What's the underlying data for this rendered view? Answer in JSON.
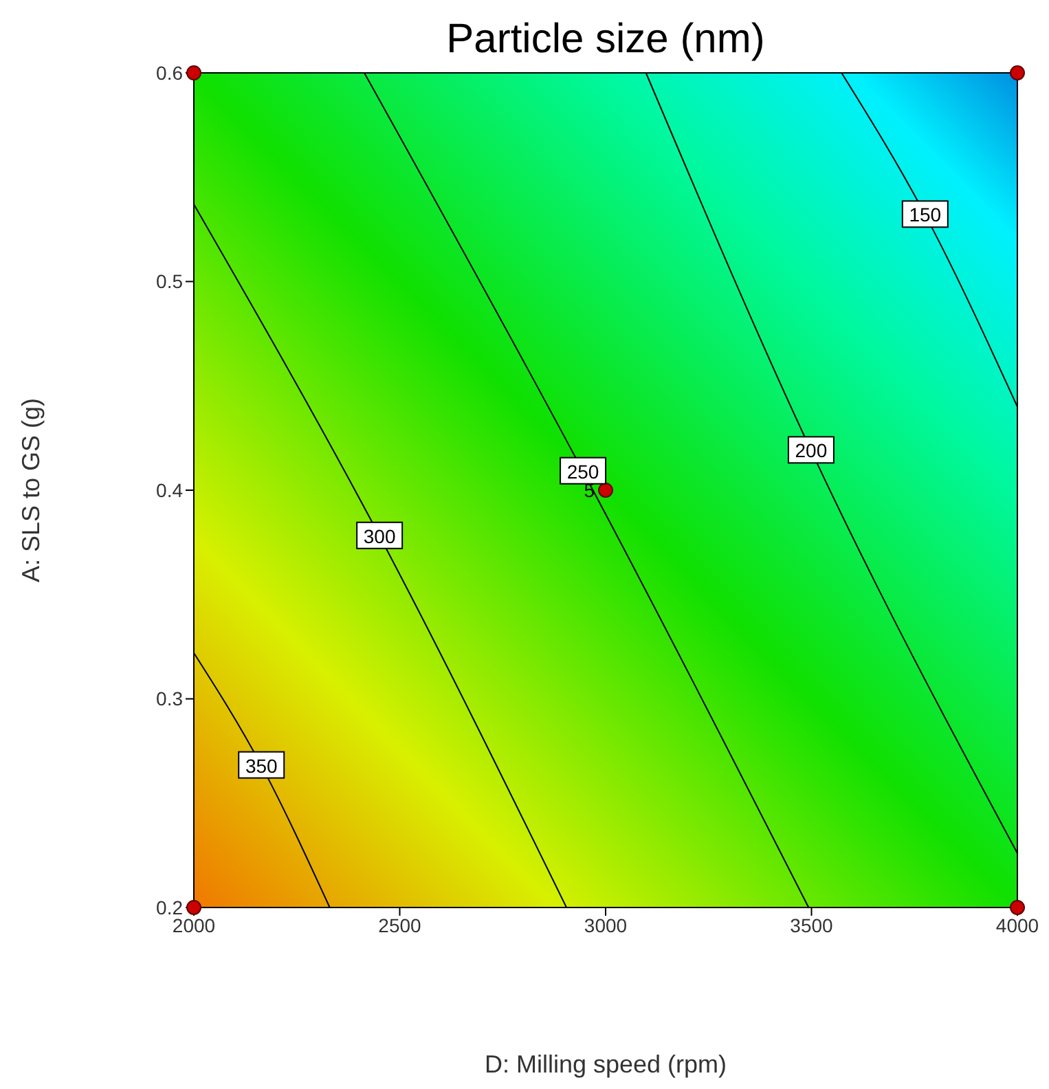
{
  "chart_data": {
    "type": "line",
    "title": "Particle size (nm)",
    "xlabel": "D: Milling speed (rpm)",
    "ylabel": "A: SLS to GS (g)",
    "xlim": [
      2000,
      4000
    ],
    "xticks": [
      2000,
      2500,
      3000,
      3500,
      4000
    ],
    "ylim": [
      0.2,
      0.6
    ],
    "yticks": [
      0.2,
      0.3,
      0.4,
      0.5,
      0.6
    ],
    "marker": "none",
    "line_style": "solid",
    "series": [
      {
        "name": "350",
        "color": "#000000",
        "x": [
          2000,
          2164,
          2330
        ],
        "values": [
          0.322,
          0.268,
          0.2
        ]
      },
      {
        "name": "300",
        "color": "#000000",
        "x": [
          2000,
          2451,
          2905
        ],
        "values": [
          0.537,
          0.378,
          0.2
        ]
      },
      {
        "name": "250",
        "color": "#000000",
        "x": [
          2414,
          2945,
          3493
        ],
        "values": [
          0.6,
          0.409,
          0.2
        ]
      },
      {
        "name": "200",
        "color": "#000000",
        "x": [
          3098,
          3499,
          4000
        ],
        "values": [
          0.6,
          0.419,
          0.226
        ]
      },
      {
        "name": "150",
        "color": "#000000",
        "x": [
          3573,
          3776,
          4000
        ],
        "values": [
          0.6,
          0.532,
          0.44
        ]
      },
      {
        "type": "scatter",
        "color": "#cc0000",
        "marker": "circle",
        "x": [
          2000,
          2000,
          4000,
          4000,
          3000
        ],
        "values": [
          0.2,
          0.6,
          0.2,
          0.6,
          0.4
        ]
      }
    ],
    "annotations": [
      {
        "text": "5",
        "x": 3000,
        "y": 0.4
      }
    ]
  }
}
